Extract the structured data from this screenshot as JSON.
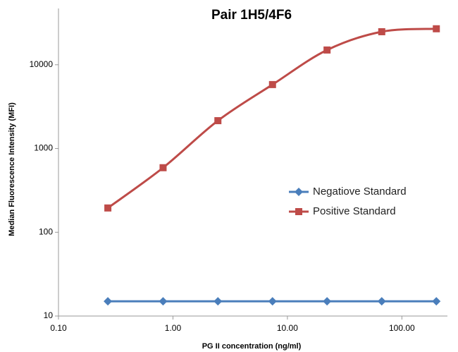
{
  "chart_data": {
    "type": "line",
    "title": "Pair 1H5/4F6",
    "x_label": "PG II concentration (ng/ml)",
    "y_label": "Median Fluorescence Intensity (MFI)",
    "x": [
      0.27,
      0.82,
      2.47,
      7.41,
      22.2,
      66.7,
      200
    ],
    "series": [
      {
        "name": "Negatiove Standard",
        "color": "#4a7ebb",
        "marker": "diamond",
        "values": [
          15,
          15,
          15,
          15,
          15,
          15,
          15
        ]
      },
      {
        "name": "Positive Standard",
        "color": "#be4b48",
        "marker": "square",
        "values": [
          195,
          590,
          2150,
          5800,
          15000,
          24800,
          26900
        ]
      }
    ],
    "x_log": true,
    "y_log": true,
    "xlim": [
      0.1,
      250
    ],
    "ylim": [
      10,
      47000
    ],
    "xticks": [
      {
        "value": 0.1,
        "label": "0.10"
      },
      {
        "value": 1,
        "label": "1.00"
      },
      {
        "value": 10,
        "label": "10.00"
      },
      {
        "value": 100,
        "label": "100.00"
      }
    ],
    "yticks": [
      10,
      100,
      1000,
      10000
    ],
    "grid": false,
    "legend": "right"
  }
}
